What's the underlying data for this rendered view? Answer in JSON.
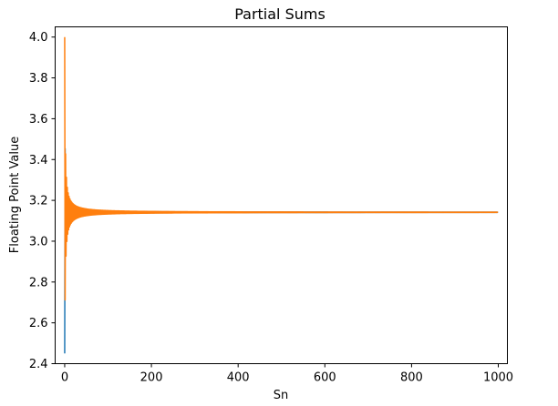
{
  "chart_data": {
    "type": "line",
    "title": "Partial Sums",
    "xlabel": "Sn",
    "ylabel": "Floating Point Value",
    "xlim": [
      -22,
      1021
    ],
    "ylim": [
      2.4,
      4.05
    ],
    "xticks": [
      0,
      200,
      400,
      600,
      800,
      1000
    ],
    "xtick_labels": [
      "0",
      "200",
      "400",
      "600",
      "800",
      "1000"
    ],
    "yticks": [
      2.4,
      2.6,
      2.8,
      3.0,
      3.2,
      3.4,
      3.6,
      3.8,
      4.0
    ],
    "ytick_labels": [
      "2.4",
      "2.6",
      "2.8",
      "3.0",
      "3.2",
      "3.4",
      "3.6",
      "3.8",
      "4.0"
    ],
    "grid": false,
    "legend": false,
    "series": [
      {
        "color": "#1f77b4",
        "x_start": 0,
        "x_end": 999,
        "start_value": 2.45,
        "limit": 3.14159,
        "description_values": {
          "first": 2.45,
          "converges_to": 3.1416
        }
      },
      {
        "color": "#ff7f0e",
        "x_start": 0,
        "x_end": 999,
        "start_value": 4.0,
        "limit": 3.14159,
        "description_values": {
          "first": 4.0,
          "converges_to": 3.1416
        }
      }
    ]
  }
}
